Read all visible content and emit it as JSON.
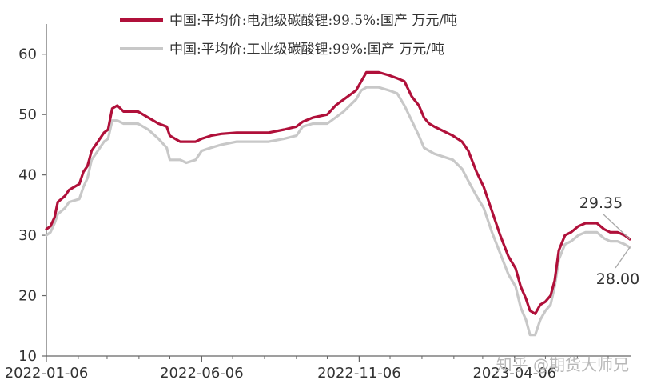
{
  "chart_data": {
    "type": "line",
    "title": "",
    "xlabel": "",
    "ylabel": "",
    "ylim": [
      10,
      65
    ],
    "yticks": [
      10,
      20,
      30,
      40,
      50,
      60
    ],
    "x_tick_labels": [
      "2022-01-06",
      "2022-06-06",
      "2022-11-06",
      "2023-04-06"
    ],
    "legend_position": "top",
    "series": [
      {
        "name": "中国:平均价:电池级碳酸锂:99.5%:国产 万元/吨",
        "color": "#b0103a",
        "points": [
          [
            "2022-01-06",
            31.0
          ],
          [
            "2022-01-10",
            31.5
          ],
          [
            "2022-01-14",
            33.0
          ],
          [
            "2022-01-17",
            35.5
          ],
          [
            "2022-01-24",
            36.5
          ],
          [
            "2022-01-28",
            37.5
          ],
          [
            "2022-02-07",
            38.5
          ],
          [
            "2022-02-11",
            40.5
          ],
          [
            "2022-02-15",
            41.5
          ],
          [
            "2022-02-19",
            44.0
          ],
          [
            "2022-02-25",
            45.5
          ],
          [
            "2022-03-03",
            47.0
          ],
          [
            "2022-03-07",
            47.5
          ],
          [
            "2022-03-11",
            51.0
          ],
          [
            "2022-03-16",
            51.5
          ],
          [
            "2022-03-22",
            50.5
          ],
          [
            "2022-04-05",
            50.5
          ],
          [
            "2022-04-15",
            49.5
          ],
          [
            "2022-04-25",
            48.5
          ],
          [
            "2022-05-03",
            48.0
          ],
          [
            "2022-05-06",
            46.5
          ],
          [
            "2022-05-16",
            45.5
          ],
          [
            "2022-05-31",
            45.5
          ],
          [
            "2022-06-06",
            46.0
          ],
          [
            "2022-06-15",
            46.5
          ],
          [
            "2022-06-25",
            46.8
          ],
          [
            "2022-07-10",
            47.0
          ],
          [
            "2022-08-10",
            47.0
          ],
          [
            "2022-08-25",
            47.5
          ],
          [
            "2022-09-06",
            48.0
          ],
          [
            "2022-09-12",
            48.8
          ],
          [
            "2022-09-22",
            49.5
          ],
          [
            "2022-10-06",
            50.0
          ],
          [
            "2022-10-14",
            51.5
          ],
          [
            "2022-10-22",
            52.5
          ],
          [
            "2022-11-03",
            54.0
          ],
          [
            "2022-11-08",
            55.5
          ],
          [
            "2022-11-13",
            57.0
          ],
          [
            "2022-11-25",
            57.0
          ],
          [
            "2022-12-05",
            56.5
          ],
          [
            "2022-12-13",
            56.0
          ],
          [
            "2022-12-20",
            55.5
          ],
          [
            "2022-12-27",
            53.0
          ],
          [
            "2023-01-03",
            51.5
          ],
          [
            "2023-01-08",
            49.5
          ],
          [
            "2023-01-13",
            48.5
          ],
          [
            "2023-01-18",
            48.0
          ],
          [
            "2023-02-05",
            46.5
          ],
          [
            "2023-02-14",
            45.5
          ],
          [
            "2023-02-20",
            44.0
          ],
          [
            "2023-02-28",
            40.5
          ],
          [
            "2023-03-07",
            38.0
          ],
          [
            "2023-03-15",
            34.0
          ],
          [
            "2023-03-23",
            30.0
          ],
          [
            "2023-03-31",
            26.5
          ],
          [
            "2023-04-07",
            24.5
          ],
          [
            "2023-04-12",
            21.5
          ],
          [
            "2023-04-17",
            19.5
          ],
          [
            "2023-04-21",
            17.5
          ],
          [
            "2023-04-26",
            17.0
          ],
          [
            "2023-05-01",
            18.5
          ],
          [
            "2023-05-06",
            19.0
          ],
          [
            "2023-05-11",
            20.0
          ],
          [
            "2023-05-15",
            22.5
          ],
          [
            "2023-05-19",
            27.5
          ],
          [
            "2023-05-25",
            30.0
          ],
          [
            "2023-05-31",
            30.5
          ],
          [
            "2023-06-07",
            31.5
          ],
          [
            "2023-06-14",
            32.0
          ],
          [
            "2023-06-25",
            32.0
          ],
          [
            "2023-07-02",
            31.0
          ],
          [
            "2023-07-08",
            30.5
          ],
          [
            "2023-07-15",
            30.5
          ],
          [
            "2023-07-22",
            30.0
          ],
          [
            "2023-07-27",
            29.35
          ]
        ]
      },
      {
        "name": "中国:平均价:工业级碳酸锂:99%:国产 万元/吨",
        "color": "#c8c8c8",
        "points": [
          [
            "2022-01-06",
            30.0
          ],
          [
            "2022-01-10",
            30.5
          ],
          [
            "2022-01-14",
            32.0
          ],
          [
            "2022-01-17",
            33.5
          ],
          [
            "2022-01-24",
            34.5
          ],
          [
            "2022-01-28",
            35.5
          ],
          [
            "2022-02-07",
            36.0
          ],
          [
            "2022-02-11",
            38.0
          ],
          [
            "2022-02-15",
            39.5
          ],
          [
            "2022-02-19",
            42.5
          ],
          [
            "2022-02-25",
            44.0
          ],
          [
            "2022-03-03",
            45.5
          ],
          [
            "2022-03-07",
            46.0
          ],
          [
            "2022-03-11",
            49.0
          ],
          [
            "2022-03-16",
            49.0
          ],
          [
            "2022-03-22",
            48.5
          ],
          [
            "2022-04-05",
            48.5
          ],
          [
            "2022-04-15",
            47.5
          ],
          [
            "2022-04-25",
            46.0
          ],
          [
            "2022-05-03",
            44.5
          ],
          [
            "2022-05-06",
            42.5
          ],
          [
            "2022-05-16",
            42.5
          ],
          [
            "2022-05-22",
            42.0
          ],
          [
            "2022-05-31",
            42.5
          ],
          [
            "2022-06-06",
            44.0
          ],
          [
            "2022-06-15",
            44.5
          ],
          [
            "2022-06-25",
            45.0
          ],
          [
            "2022-07-10",
            45.5
          ],
          [
            "2022-08-10",
            45.5
          ],
          [
            "2022-08-25",
            46.0
          ],
          [
            "2022-09-06",
            46.5
          ],
          [
            "2022-09-12",
            48.0
          ],
          [
            "2022-09-22",
            48.5
          ],
          [
            "2022-10-06",
            48.5
          ],
          [
            "2022-10-14",
            49.5
          ],
          [
            "2022-10-22",
            50.5
          ],
          [
            "2022-11-03",
            52.5
          ],
          [
            "2022-11-08",
            54.0
          ],
          [
            "2022-11-13",
            54.5
          ],
          [
            "2022-11-25",
            54.5
          ],
          [
            "2022-12-05",
            54.0
          ],
          [
            "2022-12-13",
            53.5
          ],
          [
            "2022-12-20",
            51.5
          ],
          [
            "2022-12-27",
            49.0
          ],
          [
            "2023-01-03",
            46.5
          ],
          [
            "2023-01-08",
            44.5
          ],
          [
            "2023-01-13",
            44.0
          ],
          [
            "2023-01-18",
            43.5
          ],
          [
            "2023-02-05",
            42.5
          ],
          [
            "2023-02-14",
            41.0
          ],
          [
            "2023-02-20",
            39.0
          ],
          [
            "2023-02-28",
            36.5
          ],
          [
            "2023-03-07",
            34.5
          ],
          [
            "2023-03-15",
            30.5
          ],
          [
            "2023-03-23",
            27.0
          ],
          [
            "2023-03-31",
            23.5
          ],
          [
            "2023-04-07",
            21.5
          ],
          [
            "2023-04-12",
            18.0
          ],
          [
            "2023-04-17",
            16.0
          ],
          [
            "2023-04-21",
            13.5
          ],
          [
            "2023-04-26",
            13.5
          ],
          [
            "2023-05-01",
            16.0
          ],
          [
            "2023-05-06",
            17.5
          ],
          [
            "2023-05-11",
            18.5
          ],
          [
            "2023-05-15",
            21.5
          ],
          [
            "2023-05-19",
            26.0
          ],
          [
            "2023-05-25",
            28.5
          ],
          [
            "2023-05-31",
            29.0
          ],
          [
            "2023-06-07",
            30.0
          ],
          [
            "2023-06-14",
            30.5
          ],
          [
            "2023-06-25",
            30.5
          ],
          [
            "2023-07-02",
            29.5
          ],
          [
            "2023-07-08",
            29.0
          ],
          [
            "2023-07-15",
            29.0
          ],
          [
            "2023-07-22",
            28.5
          ],
          [
            "2023-07-27",
            28.0
          ]
        ]
      }
    ],
    "annotations": [
      {
        "text": "29.35",
        "series_index": 0,
        "date": "2023-07-27",
        "value": 29.35
      },
      {
        "text": "28.00",
        "series_index": 1,
        "date": "2023-07-27",
        "value": 28.0
      }
    ]
  },
  "watermark": "知乎 @期货大师兄"
}
